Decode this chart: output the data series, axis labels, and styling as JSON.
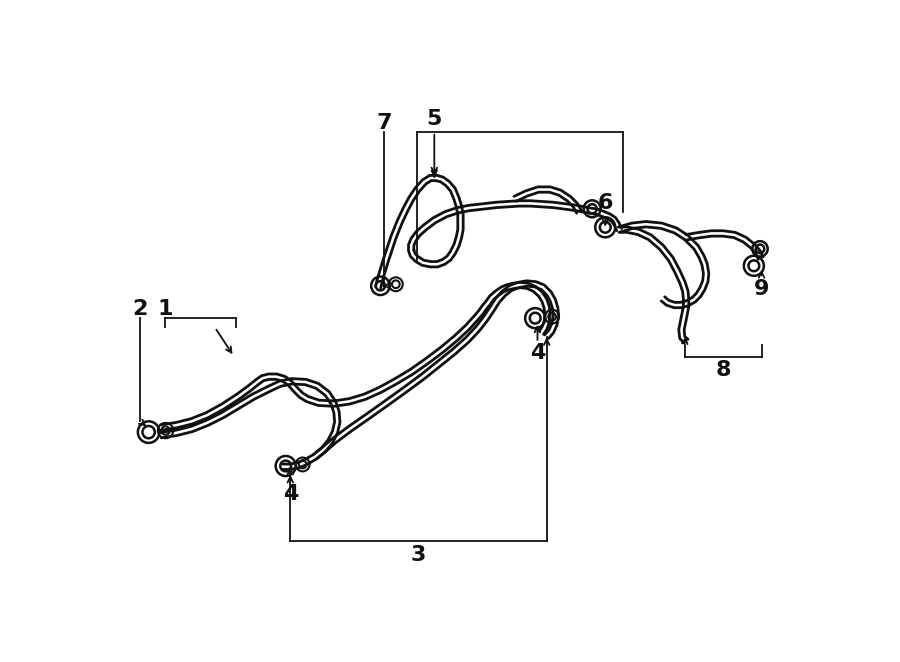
{
  "background_color": "#ffffff",
  "line_color": "#111111",
  "figsize": [
    9.0,
    6.62
  ],
  "dpi": 100,
  "label_fontsize": 16,
  "tube_sep": 7,
  "tube_lw": 2.0,
  "annot_lw": 1.3
}
